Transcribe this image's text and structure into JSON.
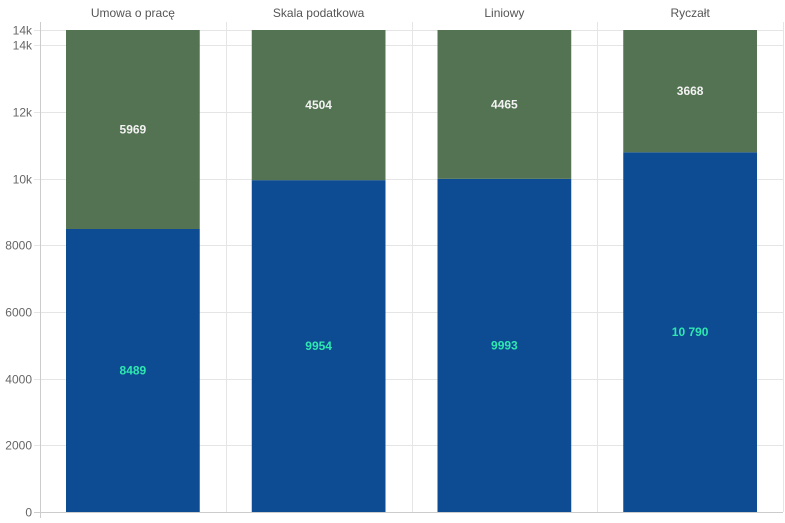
{
  "chart_data": {
    "type": "bar",
    "stacked": true,
    "categories": [
      "Umowa o pracę",
      "Skala podatkowa",
      "Liniowy",
      "Ryczałt"
    ],
    "series": [
      {
        "values": [
          8489,
          9954,
          9993,
          10790
        ],
        "labels": [
          "8489",
          "9954",
          "9993",
          "10 790"
        ],
        "color": "#0d4c92",
        "label_color": "#2ee8b0"
      },
      {
        "values": [
          5969,
          4504,
          4465,
          3668
        ],
        "labels": [
          "5969",
          "4504",
          "4465",
          "3668"
        ],
        "color": "#547352",
        "label_color": "#f2f2f2"
      }
    ],
    "y_ticks": [
      0,
      2000,
      4000,
      6000,
      8000,
      10000,
      12000,
      14000,
      14458
    ],
    "y_tick_labels": [
      "0",
      "2000",
      "4000",
      "6000",
      "8000",
      "10k",
      "12k",
      "14k",
      "14k"
    ],
    "ylim": [
      0,
      14458
    ],
    "grid": true,
    "legend": "none",
    "category_axis_position": "top",
    "grid_color": "#e5e5e5",
    "axis_color": "#cccccc"
  }
}
